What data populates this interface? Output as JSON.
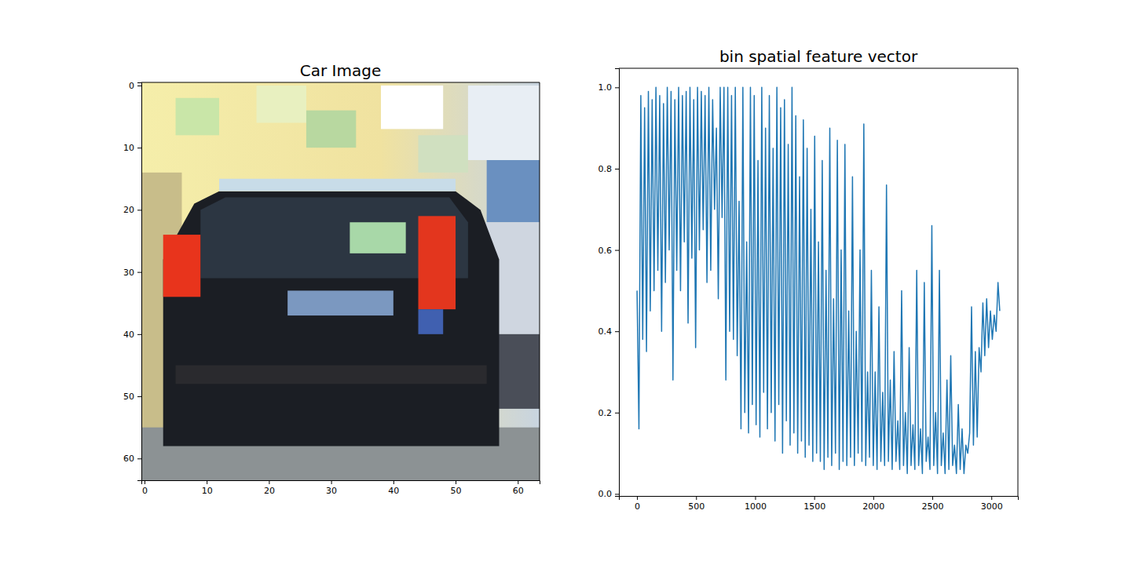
{
  "chart_data": [
    {
      "type": "image",
      "title": "Car Image",
      "xlim": [
        -0.5,
        63.5
      ],
      "ylim": [
        63.5,
        -0.5
      ],
      "xticks": [
        0,
        10,
        20,
        30,
        40,
        50,
        60
      ],
      "yticks": [
        0,
        10,
        20,
        30,
        40,
        50,
        60
      ]
    },
    {
      "type": "line",
      "title": "bin spatial feature vector",
      "color": "#1f77b4",
      "x": [
        0,
        16,
        32,
        48,
        64,
        80,
        96,
        112,
        128,
        144,
        160,
        176,
        192,
        208,
        224,
        240,
        256,
        272,
        288,
        304,
        320,
        336,
        352,
        368,
        384,
        400,
        416,
        432,
        448,
        464,
        480,
        496,
        512,
        528,
        544,
        560,
        576,
        592,
        608,
        624,
        640,
        656,
        672,
        688,
        704,
        720,
        736,
        752,
        768,
        784,
        800,
        816,
        832,
        848,
        864,
        880,
        896,
        912,
        928,
        944,
        960,
        976,
        992,
        1008,
        1024,
        1040,
        1056,
        1072,
        1088,
        1104,
        1120,
        1136,
        1152,
        1168,
        1184,
        1200,
        1216,
        1232,
        1248,
        1264,
        1280,
        1296,
        1312,
        1328,
        1344,
        1360,
        1376,
        1392,
        1408,
        1424,
        1440,
        1456,
        1472,
        1488,
        1504,
        1520,
        1536,
        1552,
        1568,
        1584,
        1600,
        1616,
        1632,
        1648,
        1664,
        1680,
        1696,
        1712,
        1728,
        1744,
        1760,
        1776,
        1792,
        1808,
        1824,
        1840,
        1856,
        1872,
        1888,
        1904,
        1920,
        1936,
        1952,
        1968,
        1984,
        2000,
        2016,
        2032,
        2048,
        2064,
        2080,
        2096,
        2112,
        2128,
        2144,
        2160,
        2176,
        2192,
        2208,
        2224,
        2240,
        2256,
        2272,
        2288,
        2304,
        2320,
        2336,
        2352,
        2368,
        2384,
        2400,
        2416,
        2432,
        2448,
        2464,
        2480,
        2496,
        2512,
        2528,
        2544,
        2560,
        2576,
        2592,
        2608,
        2624,
        2640,
        2656,
        2672,
        2688,
        2704,
        2720,
        2736,
        2752,
        2768,
        2784,
        2800,
        2816,
        2832,
        2848,
        2864,
        2880,
        2896,
        2912,
        2928,
        2944,
        2960,
        2976,
        2992,
        3008,
        3024,
        3040,
        3056,
        3071
      ],
      "values": [
        0.5,
        0.16,
        0.98,
        0.38,
        0.95,
        0.35,
        0.99,
        0.45,
        0.97,
        0.5,
        1.0,
        0.55,
        0.98,
        0.4,
        0.96,
        0.52,
        1.0,
        0.6,
        0.99,
        0.28,
        0.97,
        0.55,
        1.0,
        0.5,
        0.98,
        0.62,
        0.99,
        0.42,
        1.0,
        0.58,
        0.97,
        0.36,
        1.0,
        0.6,
        0.99,
        0.65,
        0.98,
        0.52,
        1.0,
        0.55,
        0.97,
        0.7,
        0.9,
        0.48,
        1.0,
        0.68,
        1.0,
        0.28,
        1.0,
        0.4,
        0.98,
        0.38,
        1.0,
        0.34,
        0.72,
        0.16,
        1.0,
        0.2,
        0.62,
        0.15,
        1.0,
        0.22,
        0.98,
        0.17,
        0.82,
        0.14,
        1.0,
        0.25,
        0.9,
        0.16,
        0.98,
        0.2,
        0.85,
        0.13,
        1.0,
        0.22,
        0.95,
        0.1,
        0.97,
        0.18,
        0.86,
        0.12,
        1.0,
        0.15,
        0.93,
        0.1,
        0.78,
        0.13,
        0.92,
        0.09,
        0.85,
        0.12,
        0.7,
        0.08,
        0.88,
        0.1,
        0.62,
        0.08,
        0.82,
        0.06,
        0.55,
        0.09,
        0.9,
        0.07,
        0.48,
        0.1,
        0.87,
        0.06,
        0.6,
        0.08,
        0.86,
        0.07,
        0.45,
        0.09,
        0.78,
        0.07,
        0.4,
        0.1,
        0.6,
        0.08,
        0.91,
        0.07,
        0.3,
        0.09,
        0.55,
        0.07,
        0.3,
        0.06,
        0.46,
        0.08,
        0.25,
        0.07,
        0.76,
        0.08,
        0.28,
        0.06,
        0.35,
        0.08,
        0.18,
        0.06,
        0.5,
        0.07,
        0.2,
        0.05,
        0.36,
        0.07,
        0.17,
        0.06,
        0.55,
        0.07,
        0.16,
        0.05,
        0.52,
        0.08,
        0.14,
        0.06,
        0.66,
        0.07,
        0.2,
        0.05,
        0.55,
        0.07,
        0.15,
        0.05,
        0.28,
        0.06,
        0.34,
        0.07,
        0.12,
        0.05,
        0.22,
        0.06,
        0.16,
        0.05,
        0.12,
        0.1,
        0.15,
        0.46,
        0.12,
        0.35,
        0.14,
        0.36,
        0.3,
        0.47,
        0.34,
        0.48,
        0.36,
        0.45,
        0.38,
        0.44,
        0.4,
        0.52,
        0.45
      ],
      "xlim": [
        -153.55,
        3224.55
      ],
      "ylim": [
        -0.005,
        1.047
      ],
      "xticks": [
        0,
        500,
        1000,
        1500,
        2000,
        2500,
        3000
      ],
      "yticks": [
        {
          "value": 0,
          "label": "0.0"
        },
        0.2,
        0.4,
        0.6,
        0.8,
        {
          "value": 1,
          "label": "1.0"
        }
      ]
    }
  ]
}
